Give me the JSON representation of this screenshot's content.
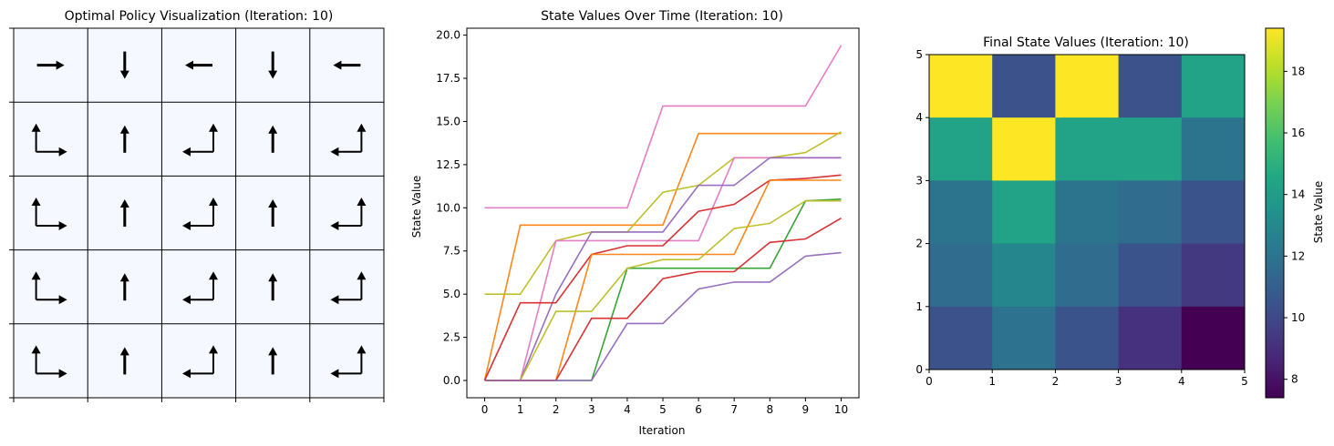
{
  "chart_data": [
    {
      "type": "other",
      "title": "Optimal Policy Visualization (Iteration: 10)",
      "grid": "5x5",
      "cell_color": "#f5f9ff",
      "note": "each cell holds arrow glyphs; rows listed top to bottom",
      "arrows": [
        [
          [
            "right"
          ],
          [
            "down"
          ],
          [
            "left"
          ],
          [
            "down"
          ],
          [
            "left"
          ]
        ],
        [
          [
            "up",
            "right"
          ],
          [
            "up"
          ],
          [
            "up",
            "left"
          ],
          [
            "up"
          ],
          [
            "up",
            "left"
          ]
        ],
        [
          [
            "up",
            "right"
          ],
          [
            "up"
          ],
          [
            "up",
            "left"
          ],
          [
            "up"
          ],
          [
            "up",
            "left"
          ]
        ],
        [
          [
            "up",
            "right"
          ],
          [
            "up"
          ],
          [
            "up",
            "left"
          ],
          [
            "up"
          ],
          [
            "up",
            "left"
          ]
        ],
        [
          [
            "up",
            "right"
          ],
          [
            "up"
          ],
          [
            "up",
            "left"
          ],
          [
            "up"
          ],
          [
            "up",
            "left"
          ]
        ]
      ]
    },
    {
      "type": "line",
      "title": "State Values Over Time (Iteration: 10)",
      "xlabel": "Iteration",
      "ylabel": "State Value",
      "xlim": [
        -0.5,
        10.5
      ],
      "ylim": [
        -1,
        20.4
      ],
      "x": [
        0,
        1,
        2,
        3,
        4,
        5,
        6,
        7,
        8,
        9,
        10
      ],
      "xticks": [
        "0",
        "1",
        "2",
        "3",
        "4",
        "5",
        "6",
        "7",
        "8",
        "9",
        "10"
      ],
      "yticks": [
        "0.0",
        "2.5",
        "5.0",
        "7.5",
        "10.0",
        "12.5",
        "15.0",
        "17.5",
        "20.0"
      ],
      "series": [
        {
          "color": "#e377c2",
          "values": [
            10,
            10,
            10,
            10,
            10,
            15.9,
            15.9,
            15.9,
            15.9,
            15.9,
            19.4
          ]
        },
        {
          "color": "#ff7f0e",
          "values": [
            0,
            9,
            9,
            9,
            9,
            9,
            14.3,
            14.3,
            14.3,
            14.3,
            14.3
          ]
        },
        {
          "color": "#bcbd22",
          "values": [
            5,
            5,
            8.1,
            8.6,
            8.6,
            10.9,
            11.3,
            12.9,
            12.9,
            13.2,
            14.4
          ]
        },
        {
          "color": "#e377c2",
          "values": [
            0,
            0,
            8.1,
            8.1,
            8.1,
            8.1,
            8.1,
            12.9,
            12.9,
            12.9,
            12.9
          ]
        },
        {
          "color": "#9467bd",
          "values": [
            0,
            0,
            5,
            8.6,
            8.6,
            8.6,
            11.3,
            11.3,
            12.9,
            12.9,
            12.9
          ]
        },
        {
          "color": "#d62728",
          "values": [
            0,
            4.5,
            4.5,
            7.3,
            7.8,
            7.8,
            9.8,
            10.2,
            11.6,
            11.7,
            11.9
          ]
        },
        {
          "color": "#ff7f0e",
          "values": [
            0,
            0,
            0,
            7.3,
            7.3,
            7.3,
            7.3,
            7.3,
            11.6,
            11.6,
            11.6
          ]
        },
        {
          "color": "#2ca02c",
          "values": [
            0,
            0,
            0,
            0,
            6.5,
            6.5,
            6.5,
            6.5,
            6.5,
            10.4,
            10.5
          ]
        },
        {
          "color": "#bcbd22",
          "values": [
            0,
            0,
            4,
            4,
            6.5,
            7,
            7,
            8.8,
            9.1,
            10.4,
            10.4
          ]
        },
        {
          "color": "#d62728",
          "values": [
            0,
            0,
            0,
            3.6,
            3.6,
            5.9,
            6.3,
            6.3,
            8,
            8.2,
            9.4
          ]
        },
        {
          "color": "#9467bd",
          "values": [
            0,
            0,
            0,
            0,
            3.3,
            3.3,
            5.3,
            5.7,
            5.7,
            7.2,
            7.4
          ]
        }
      ]
    },
    {
      "type": "heatmap",
      "title": "Final State Values (Iteration: 10)",
      "colorbar_label": "State Value",
      "xlim": [
        0,
        5
      ],
      "ylim": [
        0,
        5
      ],
      "xticks": [
        "0",
        "1",
        "2",
        "3",
        "4",
        "5"
      ],
      "yticks": [
        "0",
        "1",
        "2",
        "3",
        "4",
        "5"
      ],
      "cbar_range": [
        7.4,
        19.4
      ],
      "cbar_ticks": [
        "8",
        "10",
        "12",
        "14",
        "16",
        "18"
      ],
      "values_top_to_bottom": [
        [
          19.4,
          10.4,
          19.4,
          10.4,
          14.3
        ],
        [
          14.3,
          19.4,
          14.3,
          14.3,
          12.0
        ],
        [
          12.0,
          14.3,
          12.0,
          11.6,
          10.5
        ],
        [
          11.6,
          12.9,
          11.6,
          10.5,
          9.4
        ],
        [
          10.4,
          11.9,
          10.5,
          9.1,
          7.4
        ]
      ]
    }
  ]
}
